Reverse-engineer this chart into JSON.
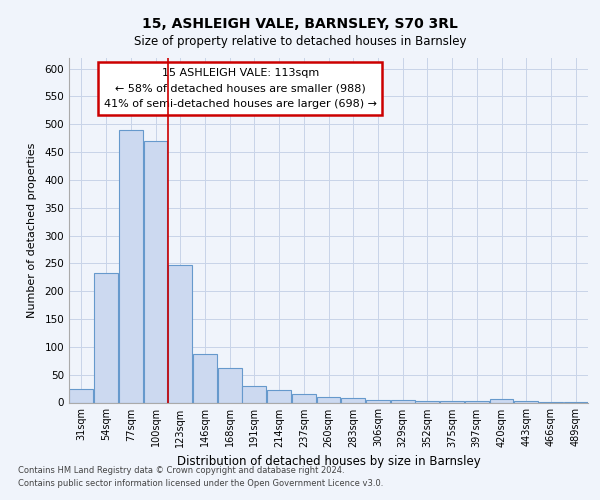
{
  "title1": "15, ASHLEIGH VALE, BARNSLEY, S70 3RL",
  "title2": "Size of property relative to detached houses in Barnsley",
  "xlabel": "Distribution of detached houses by size in Barnsley",
  "ylabel": "Number of detached properties",
  "bin_labels": [
    "31sqm",
    "54sqm",
    "77sqm",
    "100sqm",
    "123sqm",
    "146sqm",
    "168sqm",
    "191sqm",
    "214sqm",
    "237sqm",
    "260sqm",
    "283sqm",
    "306sqm",
    "329sqm",
    "352sqm",
    "375sqm",
    "397sqm",
    "420sqm",
    "443sqm",
    "466sqm",
    "489sqm"
  ],
  "bar_values": [
    25,
    232,
    490,
    470,
    248,
    88,
    62,
    30,
    22,
    15,
    10,
    8,
    4,
    4,
    3,
    2,
    2,
    6,
    2,
    1,
    1
  ],
  "bar_color": "#ccd9f0",
  "bar_edge_color": "#6699cc",
  "annotation_title": "15 ASHLEIGH VALE: 113sqm",
  "annotation_line1": "← 58% of detached houses are smaller (988)",
  "annotation_line2": "41% of semi-detached houses are larger (698) →",
  "annotation_box_color": "#ffffff",
  "annotation_box_edge": "#cc0000",
  "vline_color": "#cc0000",
  "footnote1": "Contains HM Land Registry data © Crown copyright and database right 2024.",
  "footnote2": "Contains public sector information licensed under the Open Government Licence v3.0.",
  "ylim": [
    0,
    620
  ],
  "yticks": [
    0,
    50,
    100,
    150,
    200,
    250,
    300,
    350,
    400,
    450,
    500,
    550,
    600
  ],
  "background_color": "#f0f4fb",
  "grid_color": "#c8d4e8",
  "vline_x_bin_index": 3.5
}
